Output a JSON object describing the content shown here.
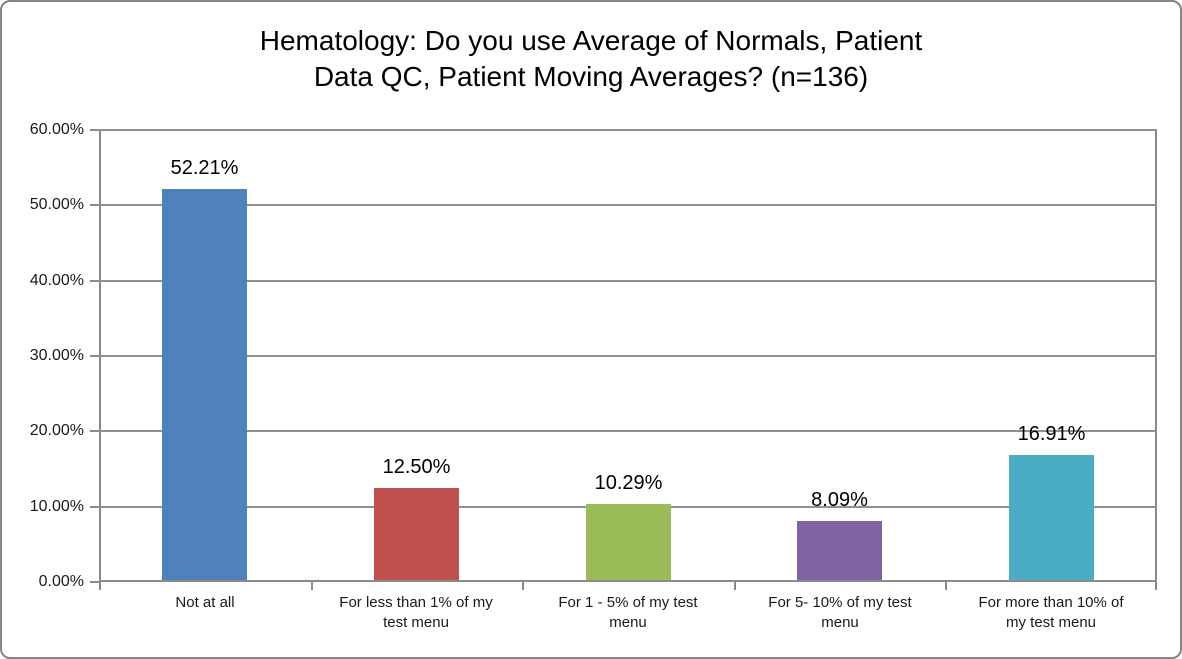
{
  "frame": {
    "background_color": "#ffffff",
    "border_color": "#868686"
  },
  "chart_data": {
    "type": "bar",
    "title": "Hematology: Do you use Average of Normals, Patient Data QC, Patient Moving Averages? (n=136)",
    "title_lines": [
      "Hematology: Do you use Average of Normals, Patient",
      "Data QC, Patient Moving Averages? (n=136)"
    ],
    "sample_size": 136,
    "categories": [
      "Not at all",
      "For less than 1% of my test menu",
      "For 1 - 5% of my test menu",
      "For 5- 10% of my test menu",
      "For more than 10% of my test menu"
    ],
    "values": [
      52.21,
      12.5,
      10.29,
      8.09,
      16.91
    ],
    "value_labels": [
      "52.21%",
      "12.50%",
      "10.29%",
      "8.09%",
      "16.91%"
    ],
    "bar_colors": [
      "#4F81BD",
      "#C0504D",
      "#9BBB59",
      "#8064A2",
      "#4BACC6"
    ],
    "xlabel": "",
    "ylabel": "",
    "ylim": [
      0,
      60
    ],
    "yticks": [
      {
        "value": 0,
        "label": "0.00%"
      },
      {
        "value": 10,
        "label": "10.00%"
      },
      {
        "value": 20,
        "label": "20.00%"
      },
      {
        "value": 30,
        "label": "30.00%"
      },
      {
        "value": 40,
        "label": "40.00%"
      },
      {
        "value": 50,
        "label": "50.00%"
      },
      {
        "value": 60,
        "label": "60.00%"
      }
    ],
    "grid": true,
    "legend_position": "none",
    "gridline_color": "#919191",
    "axis_color": "#8a8a8a"
  }
}
